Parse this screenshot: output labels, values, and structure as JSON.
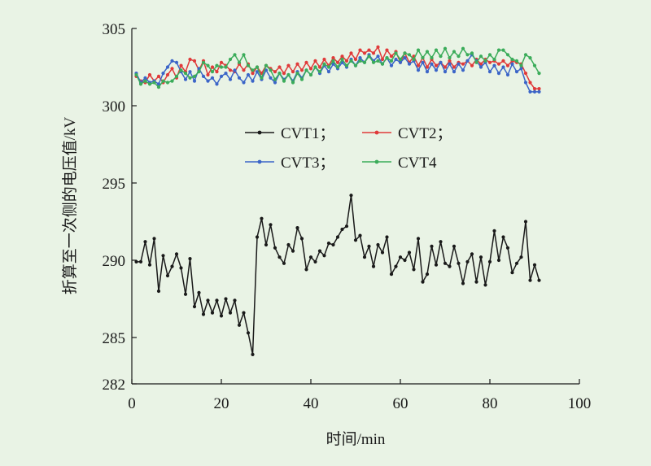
{
  "chart_data": {
    "type": "line",
    "xlabel": "时间/min",
    "ylabel": "折算至一次侧的电压值/kV",
    "xlim": [
      0,
      100
    ],
    "ylim": [
      282,
      305
    ],
    "xticks": [
      0,
      20,
      40,
      60,
      80,
      100
    ],
    "yticks": [
      282,
      285,
      290,
      295,
      300,
      305
    ],
    "grid": false,
    "legend_position": "center",
    "x": [
      1,
      2,
      3,
      4,
      5,
      6,
      7,
      8,
      9,
      10,
      11,
      12,
      13,
      14,
      15,
      16,
      17,
      18,
      19,
      20,
      21,
      22,
      23,
      24,
      25,
      26,
      27,
      28,
      29,
      30,
      31,
      32,
      33,
      34,
      35,
      36,
      37,
      38,
      39,
      40,
      41,
      42,
      43,
      44,
      45,
      46,
      47,
      48,
      49,
      50,
      51,
      52,
      53,
      54,
      55,
      56,
      57,
      58,
      59,
      60,
      61,
      62,
      63,
      64,
      65,
      66,
      67,
      68,
      69,
      70,
      71,
      72,
      73,
      74,
      75,
      76,
      77,
      78,
      79,
      80,
      81,
      82,
      83,
      84,
      85,
      86,
      87,
      88,
      89,
      90,
      91
    ],
    "series": [
      {
        "name": "CVT1；",
        "color": "#1a1a1a",
        "values": [
          289.9,
          289.9,
          291.2,
          289.7,
          291.4,
          288.0,
          290.3,
          289.0,
          289.6,
          290.4,
          289.5,
          287.8,
          290.1,
          287.0,
          287.9,
          286.5,
          287.4,
          286.6,
          287.4,
          286.4,
          287.5,
          286.6,
          287.4,
          285.8,
          286.6,
          285.3,
          283.9,
          291.5,
          292.7,
          291.0,
          292.3,
          290.8,
          290.2,
          289.8,
          291.0,
          290.6,
          292.1,
          291.4,
          289.4,
          290.2,
          289.9,
          290.6,
          290.3,
          291.1,
          291.0,
          291.5,
          292.0,
          292.2,
          294.2,
          291.3,
          291.6,
          290.2,
          290.9,
          289.6,
          291.0,
          290.5,
          291.5,
          289.1,
          289.6,
          290.2,
          290.0,
          290.5,
          289.4,
          291.4,
          288.6,
          289.1,
          290.9,
          289.7,
          291.2,
          289.8,
          289.6,
          290.9,
          289.8,
          288.5,
          289.9,
          290.4,
          288.6,
          290.2,
          288.4,
          289.9,
          291.9,
          290.0,
          291.5,
          290.8,
          289.2,
          289.8,
          290.2,
          292.5,
          288.7,
          289.7,
          288.7
        ]
      },
      {
        "name": "CVT2；",
        "color": "#e03a3a",
        "values": [
          301.9,
          301.6,
          301.5,
          302.0,
          301.6,
          301.9,
          301.5,
          302.0,
          302.4,
          301.8,
          302.6,
          302.2,
          303.0,
          302.9,
          302.3,
          302.9,
          302.0,
          302.5,
          302.2,
          302.8,
          302.6,
          302.3,
          302.2,
          302.7,
          302.3,
          302.7,
          302.1,
          302.5,
          302.1,
          302.6,
          302.4,
          302.2,
          302.5,
          302.1,
          302.6,
          302.2,
          302.7,
          302.3,
          302.8,
          302.4,
          302.9,
          302.5,
          303.0,
          302.6,
          303.1,
          302.8,
          303.2,
          302.9,
          303.4,
          303.0,
          303.6,
          303.4,
          303.6,
          303.4,
          303.8,
          303.0,
          303.6,
          303.2,
          303.5,
          302.8,
          303.4,
          302.8,
          303.2,
          302.6,
          303.1,
          302.5,
          303.0,
          302.6,
          302.8,
          302.5,
          302.9,
          302.5,
          302.8,
          302.7,
          302.9,
          302.6,
          303.0,
          302.7,
          303.0,
          302.8,
          302.9,
          302.7,
          302.9,
          302.6,
          302.9,
          302.8,
          302.7,
          302.1,
          301.5,
          301.1,
          301.1
        ]
      },
      {
        "name": "CVT3；",
        "color": "#3b65c8",
        "values": [
          302.1,
          301.5,
          301.8,
          301.5,
          301.6,
          301.4,
          302.1,
          302.5,
          302.9,
          302.8,
          302.2,
          301.7,
          302.2,
          301.6,
          302.4,
          301.9,
          301.6,
          301.8,
          301.4,
          301.9,
          302.1,
          301.7,
          302.3,
          301.8,
          301.5,
          302.0,
          301.6,
          302.2,
          301.7,
          302.3,
          301.8,
          301.5,
          302.1,
          301.7,
          302.0,
          301.6,
          302.2,
          301.8,
          302.3,
          302.0,
          302.5,
          302.1,
          302.6,
          302.2,
          302.7,
          302.4,
          302.8,
          302.5,
          303.0,
          302.6,
          303.1,
          302.8,
          303.3,
          302.9,
          303.2,
          302.7,
          303.1,
          302.6,
          303.0,
          302.8,
          303.1,
          302.7,
          302.9,
          302.3,
          302.8,
          302.2,
          302.7,
          302.3,
          302.8,
          302.2,
          302.7,
          302.2,
          302.7,
          302.3,
          302.9,
          303.3,
          302.9,
          302.5,
          302.8,
          302.2,
          302.6,
          302.1,
          302.5,
          302.0,
          302.7,
          302.2,
          302.4,
          301.5,
          300.9,
          300.9,
          300.9
        ]
      },
      {
        "name": "CVT4",
        "color": "#3bac5a",
        "values": [
          302.0,
          301.4,
          301.6,
          301.4,
          301.5,
          301.2,
          301.6,
          301.5,
          301.6,
          301.9,
          302.3,
          302.1,
          301.8,
          301.9,
          302.2,
          302.8,
          302.6,
          302.2,
          302.6,
          302.5,
          302.5,
          303.0,
          303.3,
          302.8,
          303.3,
          302.6,
          302.3,
          302.5,
          301.8,
          302.6,
          302.3,
          301.7,
          302.1,
          301.6,
          302.0,
          301.5,
          302.1,
          301.7,
          302.3,
          302.0,
          302.5,
          302.2,
          302.7,
          302.5,
          302.9,
          302.5,
          303.0,
          302.6,
          302.9,
          302.6,
          302.9,
          302.8,
          303.2,
          302.8,
          302.9,
          302.7,
          303.1,
          302.9,
          303.4,
          303.0,
          303.4,
          303.3,
          303.0,
          303.6,
          303.1,
          303.5,
          303.1,
          303.6,
          303.2,
          303.7,
          303.1,
          303.5,
          303.2,
          303.7,
          303.3,
          303.4,
          302.8,
          303.2,
          302.9,
          303.3,
          303.0,
          303.6,
          303.6,
          303.3,
          303.0,
          302.9,
          302.6,
          303.3,
          303.1,
          302.6,
          302.1
        ]
      }
    ]
  }
}
